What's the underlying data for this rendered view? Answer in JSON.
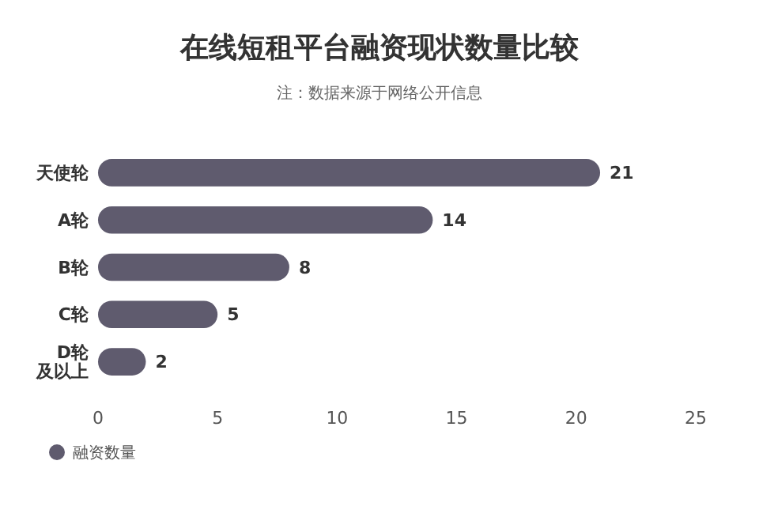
{
  "chart_data": {
    "type": "bar",
    "orientation": "horizontal",
    "title": "在线短租平台融资现状数量比较",
    "subtitle": "注：数据来源于网络公开信息",
    "categories": [
      "天使轮",
      "A轮",
      "B轮",
      "C轮",
      "D轮及以上"
    ],
    "series": [
      {
        "name": "融资数量",
        "color": "#5f5b6e",
        "values": [
          21,
          14,
          8,
          5,
          2
        ]
      }
    ],
    "xlim": [
      0,
      25
    ],
    "xticks": [
      0,
      5,
      10,
      15,
      20,
      25
    ],
    "data_labels": true,
    "legend": "bottom left",
    "grid": false
  }
}
